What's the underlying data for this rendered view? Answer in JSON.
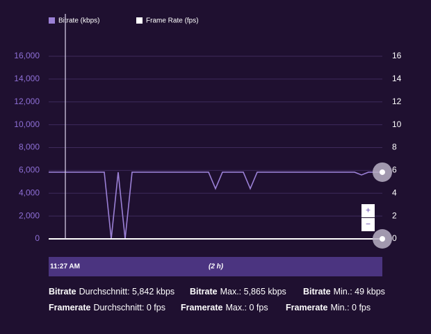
{
  "chart_data": {
    "type": "line",
    "legend": [
      "Bitrate (kbps)",
      "Frame Rate (fps)"
    ],
    "categories": [
      null,
      null,
      null,
      null,
      null,
      null,
      null,
      null,
      null,
      null,
      null,
      null,
      null,
      null,
      null,
      null,
      null,
      null,
      null,
      null,
      null,
      null,
      null,
      null,
      null,
      null,
      null,
      null,
      null,
      null,
      null,
      null,
      null,
      null,
      null,
      null,
      null,
      null,
      null,
      null,
      null,
      null,
      null,
      null,
      null,
      null,
      null,
      null,
      null
    ],
    "series": [
      {
        "name": "Bitrate (kbps)",
        "color": "#9b80d6",
        "values": [
          5842,
          5842,
          5842,
          5842,
          5842,
          5842,
          5842,
          5842,
          5842,
          0,
          5842,
          0,
          5842,
          5842,
          5842,
          5842,
          5842,
          5842,
          5842,
          5842,
          5842,
          5842,
          5842,
          5842,
          4400,
          5842,
          5842,
          5842,
          5842,
          4400,
          5842,
          5842,
          5842,
          5842,
          5842,
          5842,
          5842,
          5842,
          5842,
          5842,
          5842,
          5842,
          5842,
          5842,
          5842,
          5600,
          5842,
          5842,
          5842
        ]
      },
      {
        "name": "Frame Rate (fps)",
        "color": "#ffffff",
        "axis": "y2",
        "values": [
          0,
          0,
          0,
          0,
          0,
          0,
          0,
          0,
          0,
          0,
          0,
          0,
          0,
          0,
          0,
          0,
          0,
          0,
          0,
          0,
          0,
          0,
          0,
          0,
          0,
          0,
          0,
          0,
          0,
          0,
          0,
          0,
          0,
          0,
          0,
          0,
          0,
          0,
          0,
          0,
          0,
          0,
          0,
          0,
          0,
          0,
          0,
          0,
          0
        ]
      }
    ],
    "ylim": [
      0,
      16000
    ],
    "yticks": [
      0,
      {
        "value": 2000,
        "label": "2,000"
      },
      {
        "value": 4000,
        "label": "4,000"
      },
      {
        "value": 6000,
        "label": "6,000"
      },
      {
        "value": 8000,
        "label": "8,000"
      },
      {
        "value": 10000,
        "label": "10,000"
      },
      {
        "value": 12000,
        "label": "12,000"
      },
      {
        "value": 14000,
        "label": "14,000"
      },
      {
        "value": 16000,
        "label": "16,000"
      }
    ],
    "y2lim": [
      0,
      16
    ],
    "y2ticks": [
      0,
      2,
      4,
      6,
      8,
      10,
      12,
      14,
      16
    ],
    "grid": true,
    "zoom": [
      "+",
      "−"
    ],
    "range_start": "11:27 AM",
    "range_span": "(2 h)"
  },
  "stats": [
    [
      {
        "label": "Bitrate",
        "text": "Durchschnitt: 5,842 kbps"
      },
      {
        "label": "Bitrate",
        "text": "Max.: 5,865 kbps"
      },
      {
        "label": "Bitrate",
        "text": "Min.: 49 kbps"
      }
    ],
    [
      {
        "label": "Framerate",
        "text": "Durchschnitt: 0 fps"
      },
      {
        "label": "Framerate",
        "text": "Max.: 0 fps"
      },
      {
        "label": "Framerate",
        "text": "Min.: 0 fps"
      }
    ]
  ]
}
